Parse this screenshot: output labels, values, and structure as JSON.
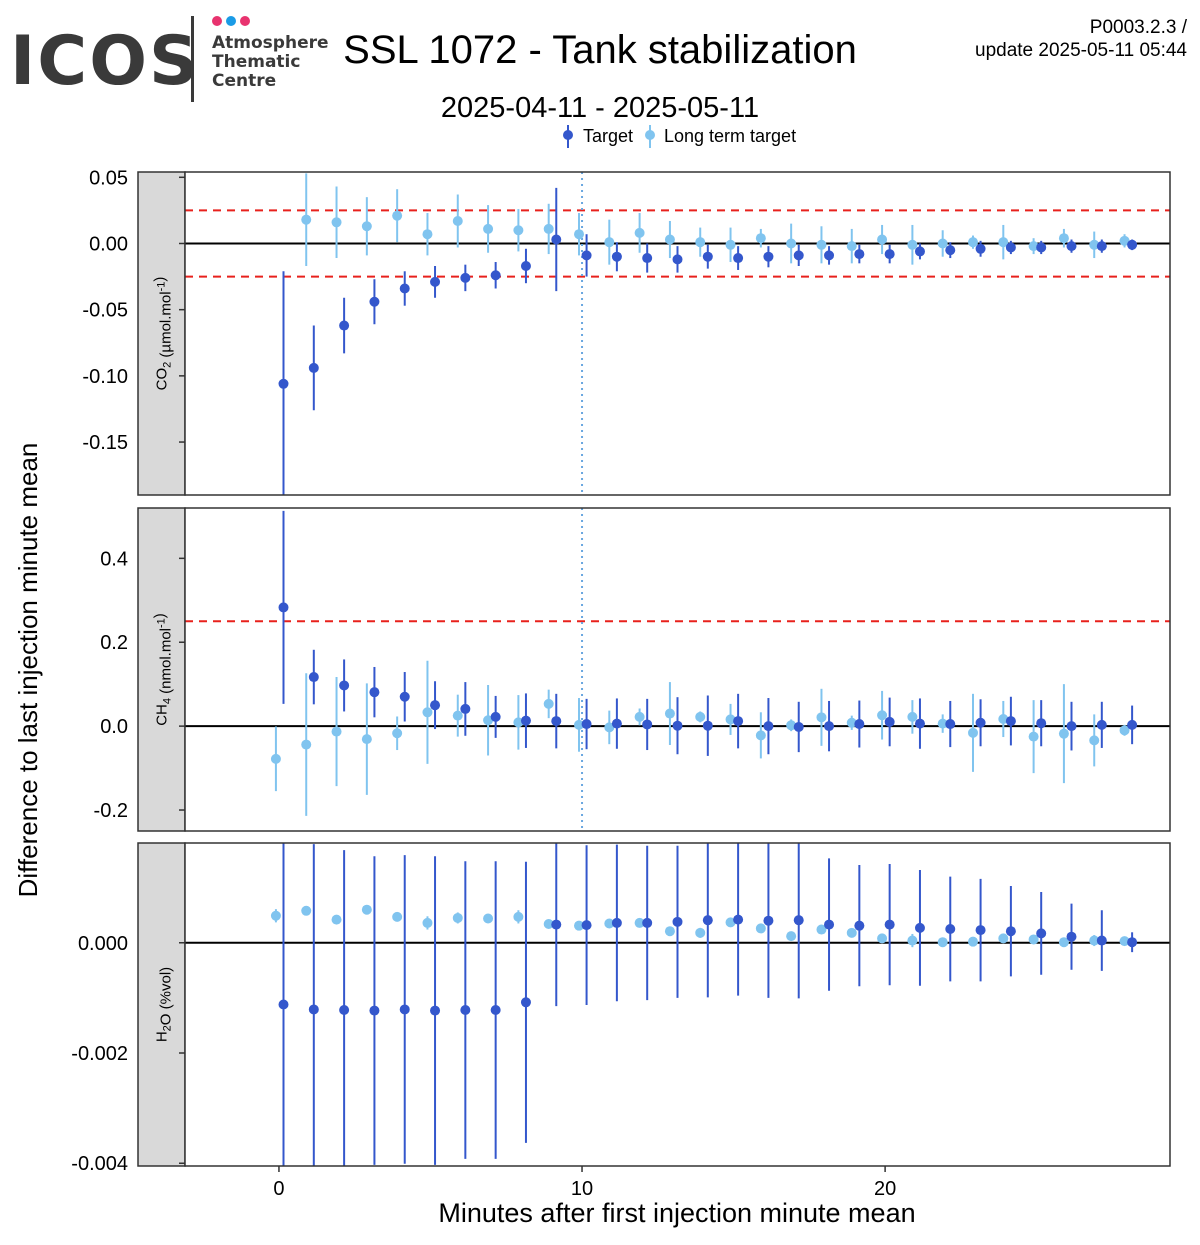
{
  "header": {
    "logo_name": "ICOS",
    "logo_sub": [
      "Atmosphere",
      "Thematic",
      "Centre"
    ],
    "logo_dot_colors": [
      "#e8336f",
      "#1a9be6",
      "#e8336f"
    ],
    "title": "SSL 1072 - Tank stabilization",
    "subtitle": "2025-04-11 - 2025-05-11",
    "code_line": "P0003.2.3 /",
    "update_line": "update  2025-05-11 05:44"
  },
  "chart_data": {
    "type": "scatter",
    "xlabel": "Minutes after first injection minute mean",
    "ylabel": "Difference to last injection minute mean",
    "xlim": [
      -3.1,
      29.4
    ],
    "x_ticks": [
      0,
      10,
      20
    ],
    "x_tick_labels": [
      "0",
      "10",
      "20"
    ],
    "reference_x": 10,
    "grid": false,
    "legend_position": "top",
    "series_styles": [
      {
        "name": "Target",
        "color": "#3457cc"
      },
      {
        "name": "Long term target",
        "color": "#80c4ef"
      }
    ],
    "panels": [
      {
        "strip_label": "CO2 (µmol.mol-1)",
        "strip_parts": [
          {
            "t": "CO",
            "s": "n"
          },
          {
            "t": "2",
            "s": "sub"
          },
          {
            "t": " (µmol.mol",
            "s": "n"
          },
          {
            "t": "-1",
            "s": "sup"
          },
          {
            "t": ")",
            "s": "n"
          }
        ],
        "ylim": [
          -0.19,
          0.054
        ],
        "y_ticks": [
          0.05,
          0.0,
          -0.05,
          -0.1,
          -0.15
        ],
        "y_tick_labels": [
          "0.05",
          "0.00",
          "-0.05",
          "-0.10",
          "-0.15"
        ],
        "threshold_lines": [
          0.025,
          -0.025
        ],
        "series": [
          {
            "name": "Target",
            "x": [
              0.15,
              1.15,
              2.15,
              3.15,
              4.15,
              5.15,
              6.15,
              7.15,
              8.15,
              9.15,
              10.15,
              11.15,
              12.15,
              13.15,
              14.15,
              15.15,
              16.15,
              17.15,
              18.15,
              19.15,
              20.15,
              21.15,
              22.15,
              23.15,
              24.15,
              25.15,
              26.15,
              27.15,
              28.15
            ],
            "y": [
              -0.106,
              -0.094,
              -0.062,
              -0.044,
              -0.034,
              -0.029,
              -0.026,
              -0.024,
              -0.017,
              0.003,
              -0.009,
              -0.01,
              -0.011,
              -0.012,
              -0.01,
              -0.011,
              -0.01,
              -0.009,
              -0.009,
              -0.008,
              -0.008,
              -0.006,
              -0.005,
              -0.004,
              -0.003,
              -0.003,
              -0.002,
              -0.002,
              -0.001
            ],
            "err": [
              0.085,
              0.032,
              0.021,
              0.017,
              0.013,
              0.012,
              0.01,
              0.01,
              0.013,
              0.039,
              0.016,
              0.011,
              0.011,
              0.01,
              0.009,
              0.009,
              0.008,
              0.008,
              0.007,
              0.007,
              0.007,
              0.006,
              0.006,
              0.006,
              0.005,
              0.005,
              0.005,
              0.005,
              0.004
            ]
          },
          {
            "name": "Long term target",
            "x": [
              -0.1,
              0.9,
              1.9,
              2.9,
              3.9,
              4.9,
              5.9,
              6.9,
              7.9,
              8.9,
              9.9,
              10.9,
              11.9,
              12.9,
              13.9,
              14.9,
              15.9,
              16.9,
              17.9,
              18.9,
              19.9,
              20.9,
              21.9,
              22.9,
              23.9,
              24.9,
              25.9,
              26.9,
              27.9
            ],
            "y": [
              null,
              0.018,
              0.016,
              0.013,
              0.021,
              0.007,
              0.017,
              0.011,
              0.01,
              0.011,
              0.007,
              0.001,
              0.008,
              0.003,
              0.001,
              -0.001,
              0.004,
              0.0,
              -0.001,
              -0.002,
              0.003,
              -0.001,
              0.0,
              0.001,
              0.001,
              -0.002,
              0.004,
              -0.001,
              0.002
            ],
            "err": [
              null,
              0.035,
              0.027,
              0.022,
              0.02,
              0.016,
              0.02,
              0.018,
              0.016,
              0.019,
              0.016,
              0.017,
              0.015,
              0.014,
              0.011,
              0.013,
              0.007,
              0.015,
              0.014,
              0.013,
              0.011,
              0.015,
              0.01,
              0.005,
              0.013,
              0.006,
              0.007,
              0.01,
              0.005
            ]
          }
        ]
      },
      {
        "strip_label": "CH4 (nmol.mol-1)",
        "strip_parts": [
          {
            "t": "CH",
            "s": "n"
          },
          {
            "t": "4",
            "s": "sub"
          },
          {
            "t": " (nmol.mol",
            "s": "n"
          },
          {
            "t": "-1",
            "s": "sup"
          },
          {
            "t": ")",
            "s": "n"
          }
        ],
        "ylim": [
          -0.25,
          0.52
        ],
        "y_ticks": [
          0.4,
          0.2,
          0.0,
          -0.2
        ],
        "y_tick_labels": [
          "0.4",
          "0.2",
          "0.0",
          "-0.2"
        ],
        "threshold_lines": [
          0.25
        ],
        "series": [
          {
            "name": "Target",
            "x": [
              0.15,
              1.15,
              2.15,
              3.15,
              4.15,
              5.15,
              6.15,
              7.15,
              8.15,
              9.15,
              10.15,
              11.15,
              12.15,
              13.15,
              14.15,
              15.15,
              16.15,
              17.15,
              18.15,
              19.15,
              20.15,
              21.15,
              22.15,
              23.15,
              24.15,
              25.15,
              26.15,
              27.15,
              28.15
            ],
            "y": [
              0.283,
              0.117,
              0.097,
              0.081,
              0.07,
              0.05,
              0.041,
              0.022,
              0.013,
              0.012,
              0.005,
              0.006,
              0.004,
              0.001,
              0.001,
              0.012,
              0.0,
              -0.002,
              0.0,
              0.005,
              0.01,
              0.006,
              0.005,
              0.008,
              0.012,
              0.007,
              0.0,
              0.003,
              0.003
            ],
            "err": [
              0.23,
              0.065,
              0.062,
              0.06,
              0.059,
              0.057,
              0.064,
              0.05,
              0.065,
              0.065,
              0.06,
              0.06,
              0.061,
              0.068,
              0.072,
              0.065,
              0.067,
              0.06,
              0.06,
              0.056,
              0.058,
              0.06,
              0.055,
              0.056,
              0.058,
              0.055,
              0.058,
              0.055,
              0.046
            ]
          },
          {
            "name": "Long term target",
            "x": [
              -0.1,
              0.9,
              1.9,
              2.9,
              3.9,
              4.9,
              5.9,
              6.9,
              7.9,
              8.9,
              9.9,
              10.9,
              11.9,
              12.9,
              13.9,
              14.9,
              15.9,
              16.9,
              17.9,
              18.9,
              19.9,
              20.9,
              21.9,
              22.9,
              23.9,
              24.9,
              25.9,
              26.9,
              27.9
            ],
            "y": [
              -0.078,
              -0.044,
              -0.013,
              -0.031,
              -0.017,
              0.033,
              0.025,
              0.014,
              0.009,
              0.053,
              0.003,
              -0.003,
              0.022,
              0.03,
              0.022,
              0.016,
              -0.022,
              0.002,
              0.021,
              0.008,
              0.026,
              0.022,
              0.006,
              -0.016,
              0.017,
              -0.025,
              -0.018,
              -0.034,
              -0.01
            ],
            "err": [
              0.077,
              0.17,
              0.13,
              0.133,
              0.04,
              0.123,
              0.05,
              0.084,
              0.065,
              0.034,
              0.064,
              0.04,
              0.02,
              0.075,
              0.013,
              0.037,
              0.055,
              0.014,
              0.068,
              0.017,
              0.058,
              0.04,
              0.022,
              0.093,
              0.043,
              0.087,
              0.118,
              0.062,
              0.013
            ]
          }
        ]
      },
      {
        "strip_label": "H2O (%vol)",
        "strip_parts": [
          {
            "t": "H",
            "s": "n"
          },
          {
            "t": "2",
            "s": "sub"
          },
          {
            "t": "O (%vol)",
            "s": "n"
          }
        ],
        "ylim": [
          -0.00405,
          0.00181
        ],
        "y_ticks": [
          0.0,
          -0.002,
          -0.004
        ],
        "y_tick_labels": [
          "0.000",
          "-0.002",
          "-0.004"
        ],
        "threshold_lines": [],
        "series": [
          {
            "name": "Target",
            "x": [
              0.15,
              1.15,
              2.15,
              3.15,
              4.15,
              5.15,
              6.15,
              7.15,
              8.15,
              9.15,
              10.15,
              11.15,
              12.15,
              13.15,
              14.15,
              15.15,
              16.15,
              17.15,
              18.15,
              19.15,
              20.15,
              21.15,
              22.15,
              23.15,
              24.15,
              25.15,
              26.15,
              27.15,
              28.15
            ],
            "y": [
              -0.00112,
              -0.00121,
              -0.00122,
              -0.00123,
              -0.00121,
              -0.00123,
              -0.00122,
              -0.00122,
              -0.00108,
              0.00033,
              0.00032,
              0.00036,
              0.00036,
              0.00038,
              0.00041,
              0.00042,
              0.0004,
              0.00041,
              0.00033,
              0.00031,
              0.00033,
              0.00027,
              0.00025,
              0.00023,
              0.00021,
              0.00017,
              0.00011,
              4e-05,
              1e-05
            ],
            "err": [
              0.003,
              0.003,
              0.0029,
              0.0028,
              0.0028,
              0.0028,
              0.0027,
              0.0027,
              0.00255,
              0.00148,
              0.00145,
              0.00142,
              0.0014,
              0.00138,
              0.0014,
              0.00138,
              0.0014,
              0.00142,
              0.0012,
              0.0011,
              0.0011,
              0.00105,
              0.00095,
              0.00093,
              0.00082,
              0.00075,
              0.0006,
              0.00055,
              0.00018
            ]
          },
          {
            "name": "Long term target",
            "x": [
              -0.1,
              0.9,
              1.9,
              2.9,
              3.9,
              4.9,
              5.9,
              6.9,
              7.9,
              8.9,
              9.9,
              10.9,
              11.9,
              12.9,
              13.9,
              14.9,
              15.9,
              16.9,
              17.9,
              18.9,
              19.9,
              20.9,
              21.9,
              22.9,
              23.9,
              24.9,
              25.9,
              26.9,
              27.9
            ],
            "y": [
              0.00049,
              0.00058,
              0.00042,
              0.0006,
              0.00047,
              0.00036,
              0.00045,
              0.00044,
              0.00047,
              0.00034,
              0.00031,
              0.00035,
              0.00036,
              0.00021,
              0.00018,
              0.00037,
              0.00026,
              0.00012,
              0.00024,
              0.00018,
              8e-05,
              4e-05,
              1e-05,
              2e-05,
              8e-05,
              6e-05,
              1e-05,
              4e-05,
              3e-05
            ],
            "err": [
              0.00012,
              4e-05,
              4e-05,
              8e-05,
              4e-05,
              0.00012,
              0.0001,
              7e-05,
              0.00012,
              5e-05,
              3e-05,
              3e-05,
              3e-05,
              3e-05,
              9e-05,
              6e-05,
              3e-05,
              4e-05,
              4e-05,
              4e-05,
              4e-05,
              0.00012,
              4e-05,
              4e-05,
              4e-05,
              4e-05,
              4e-05,
              0.0001,
              4e-05
            ]
          }
        ]
      }
    ]
  }
}
